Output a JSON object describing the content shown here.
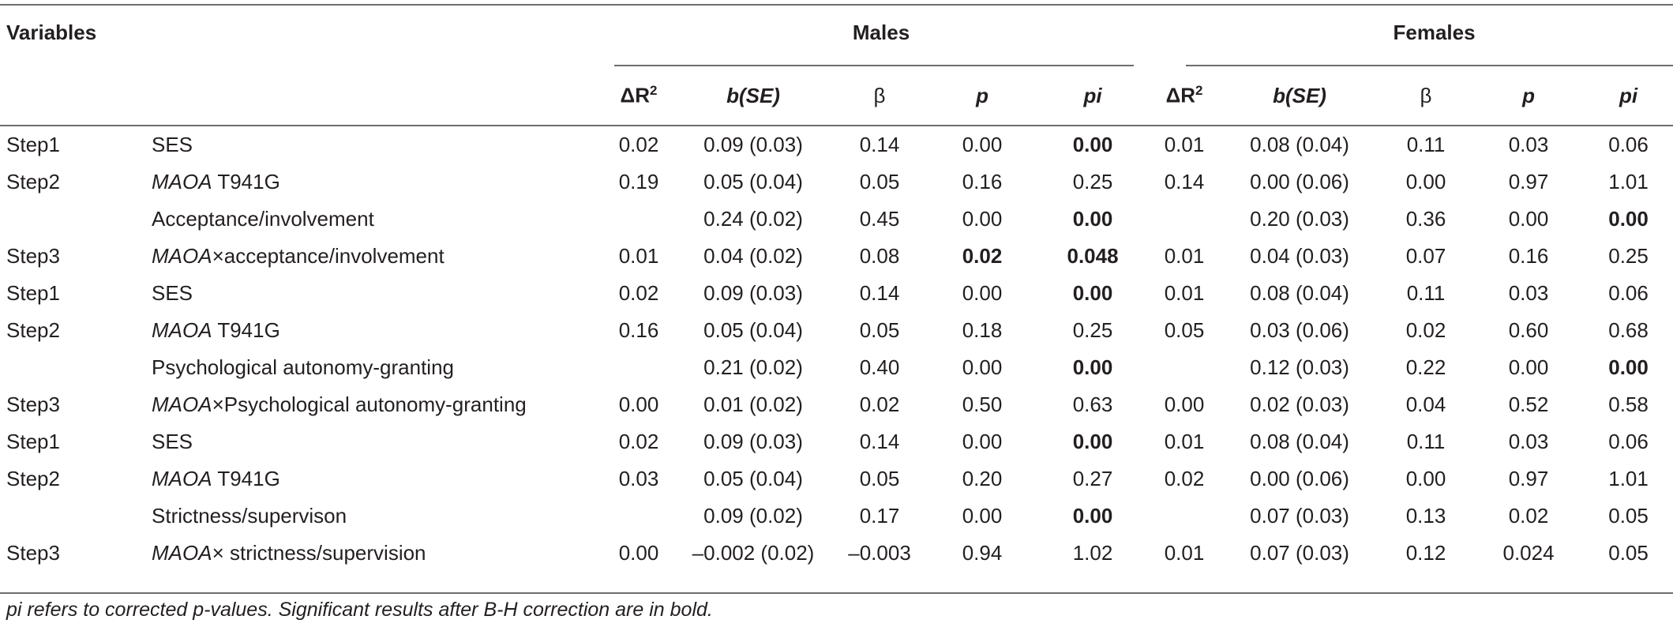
{
  "table": {
    "variables_header": "Variables",
    "groups": [
      "Males",
      "Females"
    ],
    "columns": {
      "delta_r2": "ΔR",
      "delta_r2_sup": "2",
      "b_se": "b(SE)",
      "beta": "β",
      "p": "p",
      "pi": "pi"
    },
    "rows": [
      {
        "step": "Step1",
        "gene": "",
        "var": "SES",
        "m": {
          "dr2": "0.02",
          "b": "0.09 (0.03)",
          "beta": "0.14",
          "p": "0.00",
          "pi": "0.00",
          "p_bold": false,
          "pi_bold": true
        },
        "f": {
          "dr2": "0.01",
          "b": "0.08 (0.04)",
          "beta": "0.11",
          "p": "0.03",
          "pi": "0.06",
          "p_bold": false,
          "pi_bold": false
        }
      },
      {
        "step": "Step2",
        "gene": "MAOA",
        "var": " T941G",
        "m": {
          "dr2": "0.19",
          "b": "0.05 (0.04)",
          "beta": "0.05",
          "p": "0.16",
          "pi": "0.25",
          "p_bold": false,
          "pi_bold": false
        },
        "f": {
          "dr2": "0.14",
          "b": "0.00 (0.06)",
          "beta": "0.00",
          "p": "0.97",
          "pi": "1.01",
          "p_bold": false,
          "pi_bold": false
        }
      },
      {
        "step": "",
        "gene": "",
        "var": "Acceptance/involvement",
        "m": {
          "dr2": "",
          "b": "0.24 (0.02)",
          "beta": "0.45",
          "p": "0.00",
          "pi": "0.00",
          "p_bold": false,
          "pi_bold": true
        },
        "f": {
          "dr2": "",
          "b": "0.20 (0.03)",
          "beta": "0.36",
          "p": "0.00",
          "pi": "0.00",
          "p_bold": false,
          "pi_bold": true
        }
      },
      {
        "step": "Step3",
        "gene": "MAOA",
        "var": "×acceptance/involvement",
        "m": {
          "dr2": "0.01",
          "b": "0.04 (0.02)",
          "beta": "0.08",
          "p": "0.02",
          "pi": "0.048",
          "p_bold": true,
          "pi_bold": true
        },
        "f": {
          "dr2": "0.01",
          "b": "0.04 (0.03)",
          "beta": "0.07",
          "p": "0.16",
          "pi": "0.25",
          "p_bold": false,
          "pi_bold": false
        }
      },
      {
        "step": "Step1",
        "gene": "",
        "var": "SES",
        "m": {
          "dr2": "0.02",
          "b": "0.09 (0.03)",
          "beta": "0.14",
          "p": "0.00",
          "pi": "0.00",
          "p_bold": false,
          "pi_bold": true
        },
        "f": {
          "dr2": "0.01",
          "b": "0.08 (0.04)",
          "beta": "0.11",
          "p": "0.03",
          "pi": "0.06",
          "p_bold": false,
          "pi_bold": false
        }
      },
      {
        "step": "Step2",
        "gene": "MAOA",
        "var": " T941G",
        "m": {
          "dr2": "0.16",
          "b": "0.05 (0.04)",
          "beta": "0.05",
          "p": "0.18",
          "pi": "0.25",
          "p_bold": false,
          "pi_bold": false
        },
        "f": {
          "dr2": "0.05",
          "b": "0.03 (0.06)",
          "beta": "0.02",
          "p": "0.60",
          "pi": "0.68",
          "p_bold": false,
          "pi_bold": false
        }
      },
      {
        "step": "",
        "gene": "",
        "var": "Psychological autonomy-granting",
        "m": {
          "dr2": "",
          "b": "0.21 (0.02)",
          "beta": "0.40",
          "p": "0.00",
          "pi": "0.00",
          "p_bold": false,
          "pi_bold": true
        },
        "f": {
          "dr2": "",
          "b": "0.12 (0.03)",
          "beta": "0.22",
          "p": "0.00",
          "pi": "0.00",
          "p_bold": false,
          "pi_bold": true
        }
      },
      {
        "step": "Step3",
        "gene": "MAOA",
        "var": "×Psychological autonomy-granting",
        "m": {
          "dr2": "0.00",
          "b": "0.01 (0.02)",
          "beta": "0.02",
          "p": "0.50",
          "pi": "0.63",
          "p_bold": false,
          "pi_bold": false
        },
        "f": {
          "dr2": "0.00",
          "b": "0.02 (0.03)",
          "beta": "0.04",
          "p": "0.52",
          "pi": "0.58",
          "p_bold": false,
          "pi_bold": false
        }
      },
      {
        "step": "Step1",
        "gene": "",
        "var": "SES",
        "m": {
          "dr2": "0.02",
          "b": "0.09 (0.03)",
          "beta": "0.14",
          "p": "0.00",
          "pi": "0.00",
          "p_bold": false,
          "pi_bold": true
        },
        "f": {
          "dr2": "0.01",
          "b": "0.08 (0.04)",
          "beta": "0.11",
          "p": "0.03",
          "pi": "0.06",
          "p_bold": false,
          "pi_bold": false
        }
      },
      {
        "step": "Step2",
        "gene": "MAOA",
        "var": " T941G",
        "m": {
          "dr2": "0.03",
          "b": "0.05 (0.04)",
          "beta": "0.05",
          "p": "0.20",
          "pi": "0.27",
          "p_bold": false,
          "pi_bold": false
        },
        "f": {
          "dr2": "0.02",
          "b": "0.00 (0.06)",
          "beta": "0.00",
          "p": "0.97",
          "pi": "1.01",
          "p_bold": false,
          "pi_bold": false
        }
      },
      {
        "step": "",
        "gene": "",
        "var": "Strictness/supervison",
        "m": {
          "dr2": "",
          "b": "0.09 (0.02)",
          "beta": "0.17",
          "p": "0.00",
          "pi": "0.00",
          "p_bold": false,
          "pi_bold": true
        },
        "f": {
          "dr2": "",
          "b": "0.07 (0.03)",
          "beta": "0.13",
          "p": "0.02",
          "pi": "0.05",
          "p_bold": false,
          "pi_bold": false
        }
      },
      {
        "step": "Step3",
        "gene": "MAOA",
        "var": "× strictness/supervision",
        "m": {
          "dr2": "0.00",
          "b": "–0.002 (0.02)",
          "beta": "–0.003",
          "p": "0.94",
          "pi": "1.02",
          "p_bold": false,
          "pi_bold": false
        },
        "f": {
          "dr2": "0.01",
          "b": "0.07 (0.03)",
          "beta": "0.12",
          "p": "0.024",
          "pi": "0.05",
          "p_bold": false,
          "pi_bold": false
        }
      }
    ],
    "footnote_pi": "pi",
    "footnote_rest": " refers to corrected p-values. Significant results after B-H correction are in bold."
  }
}
